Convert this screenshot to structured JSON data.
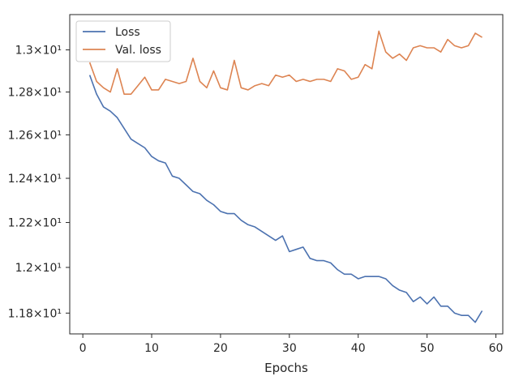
{
  "chart_data": {
    "type": "line",
    "xlabel": "Epochs",
    "ylabel": "",
    "xlim": [
      -1.9,
      61
    ],
    "ylim": [
      11.71,
      13.17
    ],
    "y_scale": "log",
    "x_ticks": [
      {
        "value": 0,
        "label": "0"
      },
      {
        "value": 10,
        "label": "10"
      },
      {
        "value": 20,
        "label": "20"
      },
      {
        "value": 30,
        "label": "30"
      },
      {
        "value": 40,
        "label": "40"
      },
      {
        "value": 50,
        "label": "50"
      },
      {
        "value": 60,
        "label": "60"
      }
    ],
    "y_ticks": [
      {
        "value": 11.8,
        "label": "1.18×10¹"
      },
      {
        "value": 12.0,
        "label": "1.2×10¹"
      },
      {
        "value": 12.2,
        "label": "1.22×10¹"
      },
      {
        "value": 12.4,
        "label": "1.24×10¹"
      },
      {
        "value": 12.6,
        "label": "1.26×10¹"
      },
      {
        "value": 12.8,
        "label": "1.28×10¹"
      },
      {
        "value": 13.0,
        "label": "1.3×10¹"
      }
    ],
    "grid": false,
    "legend_position": "top-left",
    "x": [
      1,
      2,
      3,
      4,
      5,
      6,
      7,
      8,
      9,
      10,
      11,
      12,
      13,
      14,
      15,
      16,
      17,
      18,
      19,
      20,
      21,
      22,
      23,
      24,
      25,
      26,
      27,
      28,
      29,
      30,
      31,
      32,
      33,
      34,
      35,
      36,
      37,
      38,
      39,
      40,
      41,
      42,
      43,
      44,
      45,
      46,
      47,
      48,
      49,
      50,
      51,
      52,
      53,
      54,
      55,
      56,
      57,
      58
    ],
    "series": [
      {
        "name": "Loss",
        "color": "#4c72b0",
        "values": [
          12.88,
          12.79,
          12.73,
          12.71,
          12.68,
          12.63,
          12.58,
          12.56,
          12.54,
          12.5,
          12.48,
          12.47,
          12.41,
          12.4,
          12.37,
          12.34,
          12.33,
          12.3,
          12.28,
          12.25,
          12.24,
          12.24,
          12.21,
          12.19,
          12.18,
          12.16,
          12.14,
          12.12,
          12.14,
          12.07,
          12.08,
          12.09,
          12.04,
          12.03,
          12.03,
          12.02,
          11.99,
          11.97,
          11.97,
          11.95,
          11.96,
          11.96,
          11.96,
          11.95,
          11.92,
          11.9,
          11.89,
          11.85,
          11.87,
          11.84,
          11.87,
          11.83,
          11.83,
          11.8,
          11.79,
          11.79,
          11.76,
          11.81
        ]
      },
      {
        "name": "Val. loss",
        "color": "#dd8452",
        "values": [
          12.94,
          12.85,
          12.82,
          12.8,
          12.91,
          12.79,
          12.79,
          12.83,
          12.87,
          12.81,
          12.81,
          12.86,
          12.85,
          12.84,
          12.85,
          12.96,
          12.85,
          12.82,
          12.9,
          12.82,
          12.81,
          12.95,
          12.82,
          12.81,
          12.83,
          12.84,
          12.83,
          12.88,
          12.87,
          12.88,
          12.85,
          12.86,
          12.85,
          12.86,
          12.86,
          12.85,
          12.91,
          12.9,
          12.86,
          12.87,
          12.93,
          12.91,
          13.09,
          12.99,
          12.96,
          12.98,
          12.95,
          13.01,
          13.02,
          13.01,
          13.01,
          12.99,
          13.05,
          13.02,
          13.01,
          13.02,
          13.08,
          13.06
        ]
      }
    ]
  }
}
